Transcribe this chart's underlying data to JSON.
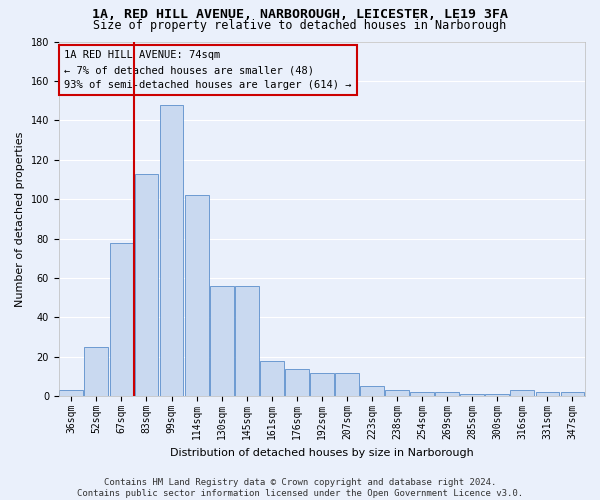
{
  "title1": "1A, RED HILL AVENUE, NARBOROUGH, LEICESTER, LE19 3FA",
  "title2": "Size of property relative to detached houses in Narborough",
  "xlabel": "Distribution of detached houses by size in Narborough",
  "ylabel": "Number of detached properties",
  "bin_labels": [
    "36sqm",
    "52sqm",
    "67sqm",
    "83sqm",
    "99sqm",
    "114sqm",
    "130sqm",
    "145sqm",
    "161sqm",
    "176sqm",
    "192sqm",
    "207sqm",
    "223sqm",
    "238sqm",
    "254sqm",
    "269sqm",
    "285sqm",
    "300sqm",
    "316sqm",
    "331sqm",
    "347sqm"
  ],
  "bar_heights": [
    3,
    25,
    78,
    113,
    148,
    102,
    56,
    56,
    18,
    14,
    12,
    12,
    5,
    3,
    2,
    2,
    1,
    1,
    3,
    2,
    2
  ],
  "bar_color": "#c9d9f0",
  "bar_edge_color": "#5b8fcc",
  "property_label": "1A RED HILL AVENUE: 74sqm",
  "annotation_line1": "← 7% of detached houses are smaller (48)",
  "annotation_line2": "93% of semi-detached houses are larger (614) →",
  "red_line_color": "#cc0000",
  "annotation_box_edge": "#cc0000",
  "ylim": [
    0,
    180
  ],
  "yticks": [
    0,
    20,
    40,
    60,
    80,
    100,
    120,
    140,
    160,
    180
  ],
  "footnote1": "Contains HM Land Registry data © Crown copyright and database right 2024.",
  "footnote2": "Contains public sector information licensed under the Open Government Licence v3.0.",
  "background_color": "#eaf0fb",
  "grid_color": "#ffffff",
  "title_fontsize": 9.5,
  "subtitle_fontsize": 8.5,
  "axis_label_fontsize": 8,
  "tick_fontsize": 7,
  "annotation_fontsize": 7.5,
  "footnote_fontsize": 6.5,
  "red_line_x": 2.5
}
